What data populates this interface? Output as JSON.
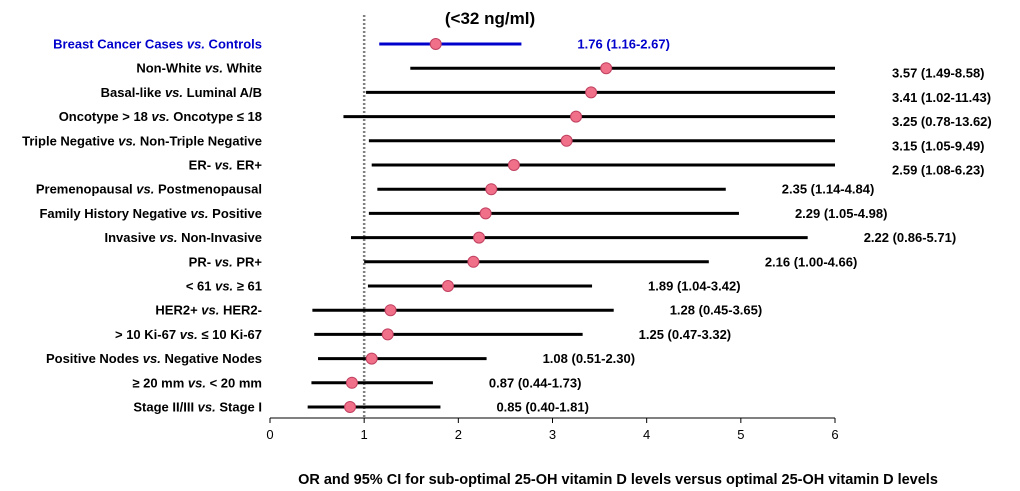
{
  "chart_data": {
    "type": "forest",
    "title": "(<32 ng/ml)",
    "xlabel": "OR and 95% CI for sub-optimal 25-OH vitamin D levels versus optimal 25-OH vitamin D levels",
    "xlim": [
      0,
      6
    ],
    "xticks": [
      "0",
      "1",
      "2",
      "3",
      "4",
      "5",
      "6"
    ],
    "reference_line": 1,
    "colors": {
      "highlight": "#0000cc",
      "default": "#000000",
      "marker": "#f0708a",
      "marker_stroke": "#c04060",
      "refline": "#808080"
    },
    "rows": [
      {
        "label_parts": [
          "Breast Cancer Cases ",
          "vs.",
          " Controls"
        ],
        "or": 1.76,
        "lo": 1.16,
        "hi": 2.67,
        "text": "1.76 (1.16-2.67)",
        "highlight": true
      },
      {
        "label_parts": [
          "Non-White ",
          "vs.",
          " White"
        ],
        "or": 3.57,
        "lo": 1.49,
        "hi": 8.58,
        "text": "3.57 (1.49-8.58)"
      },
      {
        "label_parts": [
          "Basal-like ",
          "vs.",
          " Luminal A/B"
        ],
        "or": 3.41,
        "lo": 1.02,
        "hi": 11.43,
        "text": "3.41 (1.02-11.43)"
      },
      {
        "label_parts": [
          "Oncotype > 18 ",
          "vs.",
          " Oncotype ≤ 18"
        ],
        "or": 3.25,
        "lo": 0.78,
        "hi": 13.62,
        "text": "3.25 (0.78-13.62)"
      },
      {
        "label_parts": [
          "Triple Negative ",
          "vs.",
          " Non-Triple Negative"
        ],
        "or": 3.15,
        "lo": 1.05,
        "hi": 9.49,
        "text": "3.15 (1.05-9.49)"
      },
      {
        "label_parts": [
          "ER- ",
          "vs.",
          " ER+"
        ],
        "or": 2.59,
        "lo": 1.08,
        "hi": 6.23,
        "text": "2.59 (1.08-6.23)"
      },
      {
        "label_parts": [
          "Premenopausal ",
          "vs.",
          " Postmenopausal"
        ],
        "or": 2.35,
        "lo": 1.14,
        "hi": 4.84,
        "text": "2.35 (1.14-4.84)"
      },
      {
        "label_parts": [
          "Family History Negative ",
          "vs.",
          " Positive"
        ],
        "or": 2.29,
        "lo": 1.05,
        "hi": 4.98,
        "text": "2.29 (1.05-4.98)"
      },
      {
        "label_parts": [
          "Invasive ",
          "vs.",
          " Non-Invasive"
        ],
        "or": 2.22,
        "lo": 0.86,
        "hi": 5.71,
        "text": "2.22 (0.86-5.71)"
      },
      {
        "label_parts": [
          "PR- ",
          "vs.",
          " PR+"
        ],
        "or": 2.16,
        "lo": 1.0,
        "hi": 4.66,
        "text": "2.16 (1.00-4.66)"
      },
      {
        "label_parts": [
          "< 61 ",
          "vs.",
          " ≥ 61"
        ],
        "or": 1.89,
        "lo": 1.04,
        "hi": 3.42,
        "text": "1.89 (1.04-3.42)"
      },
      {
        "label_parts": [
          "HER2+ ",
          "vs.",
          " HER2-"
        ],
        "or": 1.28,
        "lo": 0.45,
        "hi": 3.65,
        "text": "1.28 (0.45-3.65)"
      },
      {
        "label_parts": [
          "> 10 Ki-67 ",
          "vs.",
          " ≤ 10 Ki-67"
        ],
        "or": 1.25,
        "lo": 0.47,
        "hi": 3.32,
        "text": "1.25 (0.47-3.32)"
      },
      {
        "label_parts": [
          "Positive Nodes ",
          "vs.",
          " Negative Nodes"
        ],
        "or": 1.08,
        "lo": 0.51,
        "hi": 2.3,
        "text": "1.08 (0.51-2.30)"
      },
      {
        "label_parts": [
          "≥ 20 mm ",
          "vs.",
          " < 20 mm"
        ],
        "or": 0.87,
        "lo": 0.44,
        "hi": 1.73,
        "text": "0.87 (0.44-1.73)"
      },
      {
        "label_parts": [
          "Stage II/III ",
          "vs.",
          " Stage I"
        ],
        "or": 0.85,
        "lo": 0.4,
        "hi": 1.81,
        "text": "0.85 (0.40-1.81)"
      }
    ]
  }
}
